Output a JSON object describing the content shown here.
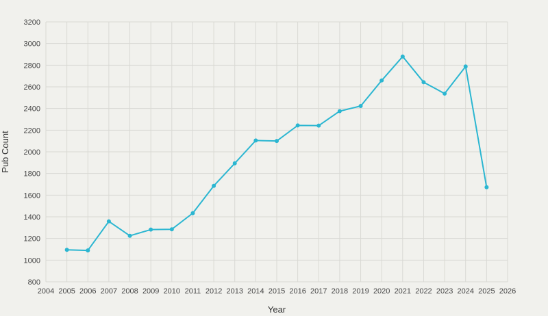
{
  "chart_data": {
    "type": "line",
    "title": "",
    "xlabel": "Year",
    "ylabel": "Pub Count",
    "xlim": [
      2004,
      2026
    ],
    "ylim": [
      800,
      3200
    ],
    "x_ticks": [
      2004,
      2005,
      2006,
      2007,
      2008,
      2009,
      2010,
      2011,
      2012,
      2013,
      2014,
      2015,
      2016,
      2017,
      2018,
      2019,
      2020,
      2021,
      2022,
      2023,
      2024,
      2025,
      2026
    ],
    "y_ticks": [
      800,
      1000,
      1200,
      1400,
      1600,
      1800,
      2000,
      2200,
      2400,
      2600,
      2800,
      3000,
      3200
    ],
    "grid": true,
    "legend": "none",
    "colors": {
      "line": "#2bb6d1",
      "grid": "#d9d9d4",
      "background": "#f1f1ed"
    },
    "x": [
      2005,
      2006,
      2007,
      2008,
      2009,
      2010,
      2011,
      2012,
      2013,
      2014,
      2015,
      2016,
      2017,
      2018,
      2019,
      2020,
      2021,
      2022,
      2023,
      2024,
      2025
    ],
    "series": [
      {
        "values": [
          1095,
          1090,
          1358,
          1225,
          1282,
          1285,
          1434,
          1686,
          1894,
          2105,
          2100,
          2244,
          2242,
          2376,
          2423,
          2659,
          2880,
          2643,
          2538,
          2788,
          1673
        ]
      }
    ]
  }
}
